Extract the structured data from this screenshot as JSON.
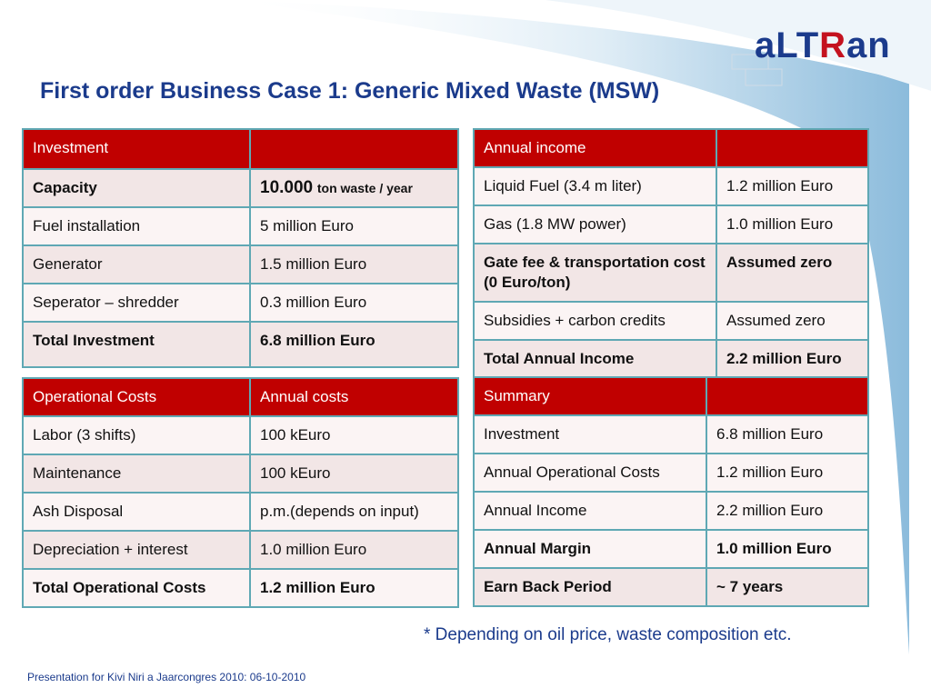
{
  "brand": {
    "logo_text_prefix": "aLT",
    "logo_text_r": "R",
    "logo_text_suffix": "an"
  },
  "title": "First order Business Case  1: Generic Mixed Waste (MSW)",
  "investment": {
    "header": [
      "Investment",
      ""
    ],
    "rows": [
      {
        "label": "Capacity",
        "value_main": "10.000",
        "value_unit": "ton waste / year"
      },
      {
        "label": "Fuel installation",
        "value": "5 million Euro"
      },
      {
        "label": "Generator",
        "value": "1.5 million Euro"
      },
      {
        "label": "Seperator – shredder",
        "value": "0.3 million Euro"
      },
      {
        "label": "Total Investment",
        "value": "6.8 million Euro"
      }
    ]
  },
  "annual_income": {
    "header": [
      "Annual income",
      ""
    ],
    "rows": [
      {
        "label": "Liquid Fuel (3.4 m liter)",
        "value": "1.2 million Euro"
      },
      {
        "label": "Gas (1.8 MW power)",
        "value": "1.0 million Euro"
      },
      {
        "label": "Gate fee & transportation cost (0 Euro/ton)",
        "value": "Assumed zero"
      },
      {
        "label": "Subsidies + carbon credits",
        "value": "Assumed zero"
      },
      {
        "label": "Total Annual Income",
        "value": "2.2 million Euro"
      }
    ]
  },
  "operational_costs": {
    "header": [
      "Operational Costs",
      "Annual costs"
    ],
    "rows": [
      {
        "label": "Labor (3 shifts)",
        "value": "100 kEuro"
      },
      {
        "label": "Maintenance",
        "value": "100 kEuro"
      },
      {
        "label": "Ash Disposal",
        "value": "p.m.(depends on input)"
      },
      {
        "label": "Depreciation + interest",
        "value": "1.0 million Euro"
      },
      {
        "label": "Total Operational Costs",
        "value": "1.2 million Euro"
      }
    ]
  },
  "summary": {
    "header": [
      "Summary",
      ""
    ],
    "rows": [
      {
        "label": "Investment",
        "value": "6.8 million Euro"
      },
      {
        "label": "Annual Operational Costs",
        "value": "1.2 million Euro"
      },
      {
        "label": "Annual Income",
        "value": "2.2 million Euro"
      },
      {
        "label": "Annual Margin",
        "value": "1.0 million Euro"
      },
      {
        "label": "Earn Back Period",
        "value": "~ 7 years"
      }
    ]
  },
  "footnote": "* Depending on oil price, waste composition etc.",
  "footer": "Presentation for Kivi Niri a Jaarcongres 2010: 06-10-2010",
  "colors": {
    "header_red": "#c00000",
    "title_blue": "#1b3b8c",
    "border_teal": "#5fa8b4"
  }
}
